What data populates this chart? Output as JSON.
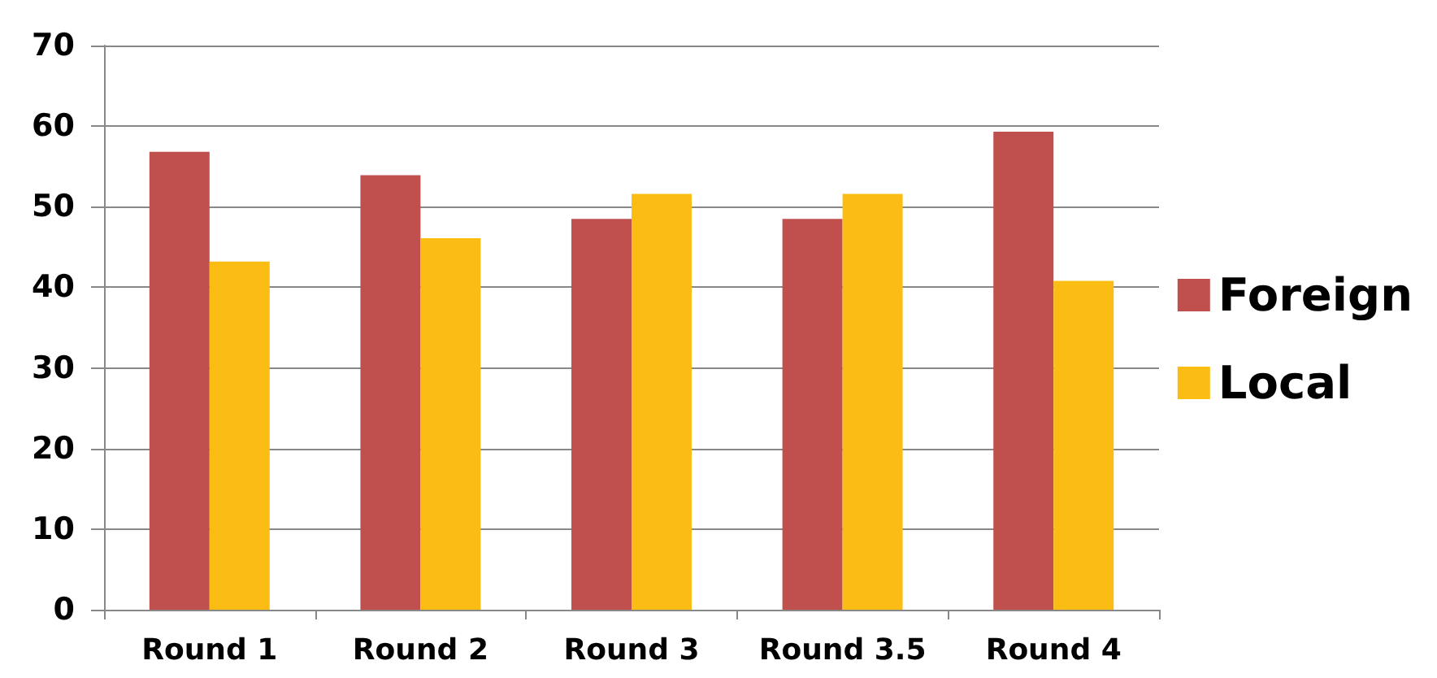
{
  "chart_data": {
    "type": "bar",
    "categories": [
      "Round 1",
      "Round 2",
      "Round 3",
      "Round 3.5",
      "Round 4"
    ],
    "series": [
      {
        "name": "Foreign",
        "color": "#c0504d",
        "values": [
          56.8,
          53.9,
          48.5,
          48.5,
          59.3
        ]
      },
      {
        "name": "Local",
        "color": "#fbbd14",
        "values": [
          43.2,
          46.1,
          51.6,
          51.6,
          40.8
        ]
      }
    ],
    "ylim": [
      0,
      70
    ],
    "yticks": [
      0,
      10,
      20,
      30,
      40,
      50,
      60,
      70
    ],
    "grid": "y",
    "legend": "right"
  }
}
